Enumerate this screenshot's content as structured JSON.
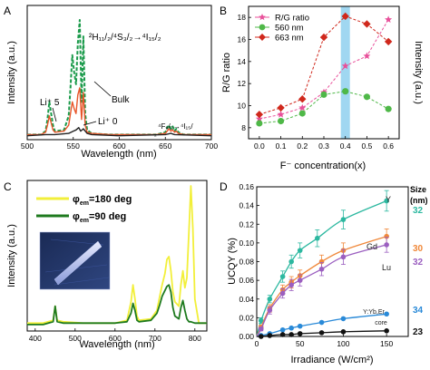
{
  "chart_data": [
    {
      "panel_letter": "A",
      "type": "line",
      "xlabel": "Wavelength (nm)",
      "ylabel": "Intensity (a.u.)",
      "xlim": [
        500,
        700
      ],
      "xticks": [
        500,
        550,
        600,
        650,
        700
      ],
      "transition_green": "²H₁₁/₂/⁴S₃/₂→⁴I₁₅/₂",
      "transition_red": "⁴F₉/₂→⁴I₁₅/",
      "transition_red_suffix": "₂",
      "labels": {
        "bulk": "Bulk",
        "li5": "Li⁺ 5",
        "li0": "Li⁺ 0"
      },
      "series": [
        {
          "name": "Bulk",
          "color": "#1a9a4a",
          "dashed": true,
          "x": [
            500,
            515,
            520,
            522,
            524,
            526,
            528,
            530,
            540,
            545,
            547,
            549,
            551,
            553,
            555,
            557,
            559,
            561,
            563,
            565,
            570,
            590,
            640,
            650,
            652,
            654,
            656,
            658,
            660,
            662,
            664,
            670,
            700
          ],
          "y": [
            0.02,
            0.02,
            0.05,
            0.15,
            0.3,
            0.2,
            0.1,
            0.05,
            0.06,
            0.18,
            0.42,
            0.7,
            0.55,
            0.45,
            0.8,
            1.0,
            0.3,
            0.86,
            0.2,
            0.06,
            0.03,
            0.02,
            0.02,
            0.04,
            0.08,
            0.1,
            0.07,
            0.09,
            0.05,
            0.07,
            0.04,
            0.02,
            0.02
          ]
        },
        {
          "name": "Li⁺ 5",
          "color": "#e8562a",
          "dashed": false,
          "x": [
            500,
            515,
            520,
            522,
            524,
            526,
            528,
            530,
            540,
            545,
            547,
            549,
            551,
            553,
            555,
            557,
            559,
            561,
            563,
            565,
            570,
            590,
            640,
            650,
            652,
            654,
            656,
            658,
            660,
            662,
            664,
            670,
            700
          ],
          "y": [
            0.02,
            0.02,
            0.04,
            0.1,
            0.18,
            0.12,
            0.06,
            0.04,
            0.05,
            0.1,
            0.2,
            0.3,
            0.24,
            0.2,
            0.36,
            0.42,
            0.15,
            0.38,
            0.1,
            0.04,
            0.03,
            0.02,
            0.02,
            0.03,
            0.05,
            0.07,
            0.05,
            0.06,
            0.04,
            0.05,
            0.03,
            0.02,
            0.02
          ]
        },
        {
          "name": "Li⁺ 0",
          "color": "#222222",
          "dashed": false,
          "x": [
            500,
            520,
            530,
            545,
            550,
            553,
            556,
            558,
            561,
            565,
            570,
            600,
            650,
            656,
            660,
            700
          ],
          "y": [
            0.01,
            0.02,
            0.02,
            0.03,
            0.05,
            0.06,
            0.08,
            0.05,
            0.07,
            0.03,
            0.02,
            0.01,
            0.02,
            0.03,
            0.02,
            0.01
          ]
        }
      ]
    },
    {
      "panel_letter": "B",
      "type": "line",
      "xlabel": "F⁻ concentration(x)",
      "ylabel_left": "R/G ratio",
      "ylabel_right": "Intensity (a.u.)",
      "xlim": [
        -0.05,
        0.65
      ],
      "ylim": [
        7,
        19
      ],
      "xticks": [
        "0.0",
        "0.1",
        "0.2",
        "0.3",
        "0.4",
        "0.5",
        "0.6"
      ],
      "yticks": [
        8,
        10,
        12,
        14,
        16,
        18
      ],
      "legend": [
        "R/G ratio",
        "560 nm",
        "663 nm"
      ],
      "highlight_x": 0.4,
      "x": [
        0.0,
        0.1,
        0.2,
        0.3,
        0.4,
        0.5,
        0.6
      ],
      "series": [
        {
          "name": "R/G ratio",
          "color": "#e8509a",
          "marker": "star",
          "values": [
            8.8,
            9.2,
            9.8,
            11.2,
            13.6,
            14.5,
            17.8
          ]
        },
        {
          "name": "560 nm",
          "color": "#4fb848",
          "marker": "circle",
          "values": [
            8.4,
            8.6,
            9.3,
            11.0,
            11.3,
            10.8,
            9.7
          ]
        },
        {
          "name": "663 nm",
          "color": "#d0281c",
          "marker": "diamond",
          "values": [
            9.2,
            9.8,
            10.6,
            16.2,
            18.1,
            17.4,
            15.8
          ]
        }
      ]
    },
    {
      "panel_letter": "C",
      "type": "line",
      "xlabel": "Wavelength (nm)",
      "ylabel": "Intensity (a.u.)",
      "xlim": [
        380,
        830
      ],
      "xticks": [
        400,
        500,
        600,
        700,
        800
      ],
      "series": [
        {
          "name": "φem=180 deg",
          "phi": "φ",
          "sub": "em",
          "rest": "=180 deg",
          "color": "#f2ef3a",
          "x": [
            380,
            420,
            445,
            450,
            455,
            470,
            520,
            600,
            630,
            640,
            645,
            650,
            655,
            660,
            690,
            705,
            712,
            718,
            725,
            730,
            735,
            740,
            745,
            750,
            760,
            765,
            770,
            775,
            780,
            787,
            790,
            795,
            800,
            810,
            830
          ],
          "y": [
            0.03,
            0.03,
            0.05,
            0.15,
            0.05,
            0.04,
            0.03,
            0.03,
            0.05,
            0.18,
            0.3,
            0.2,
            0.08,
            0.05,
            0.06,
            0.12,
            0.22,
            0.3,
            0.38,
            0.48,
            0.5,
            0.4,
            0.25,
            0.18,
            0.15,
            0.3,
            0.4,
            0.28,
            0.35,
            0.8,
            1.0,
            0.7,
            0.2,
            0.03,
            0.03
          ]
        },
        {
          "name": "φem=90 deg",
          "phi": "φ",
          "sub": "em",
          "rest": "=90 deg",
          "color": "#1e7a1e",
          "x": [
            380,
            420,
            445,
            450,
            455,
            470,
            520,
            600,
            630,
            640,
            645,
            650,
            655,
            660,
            690,
            705,
            712,
            718,
            725,
            730,
            735,
            740,
            745,
            750,
            760,
            765,
            770,
            775,
            780,
            785,
            790,
            800,
            830
          ],
          "y": [
            0.02,
            0.02,
            0.04,
            0.15,
            0.04,
            0.03,
            0.03,
            0.03,
            0.04,
            0.1,
            0.17,
            0.12,
            0.05,
            0.04,
            0.05,
            0.1,
            0.16,
            0.22,
            0.26,
            0.29,
            0.3,
            0.25,
            0.14,
            0.08,
            0.06,
            0.14,
            0.19,
            0.12,
            0.06,
            0.04,
            0.04,
            0.03,
            0.03
          ]
        }
      ]
    },
    {
      "panel_letter": "D",
      "type": "scatter",
      "xlabel": "Irradiance (W/cm²)",
      "ylabel": "UCQY (%)",
      "xlim": [
        0,
        175
      ],
      "ylim": [
        0,
        0.16
      ],
      "xticks": [
        0,
        50,
        100,
        150
      ],
      "yticks": [
        "0.00",
        "0.02",
        "0.04",
        "0.06",
        "0.08",
        "0.10",
        "0.12",
        "0.14",
        "0.16"
      ],
      "size_header": [
        "Size",
        "(nm)"
      ],
      "series": [
        {
          "name": "Y",
          "size": "32",
          "color": "#2cb8a0",
          "x": [
            5,
            15,
            30,
            40,
            50,
            70,
            100,
            150
          ],
          "y": [
            0.017,
            0.04,
            0.064,
            0.08,
            0.092,
            0.105,
            0.125,
            0.145
          ],
          "err": [
            0.003,
            0.004,
            0.006,
            0.007,
            0.008,
            0.009,
            0.01,
            0.011
          ]
        },
        {
          "name": "Gd",
          "size": "30",
          "color": "#f0883a",
          "x": [
            5,
            15,
            30,
            40,
            50,
            75,
            100,
            150
          ],
          "y": [
            0.01,
            0.03,
            0.05,
            0.058,
            0.065,
            0.08,
            0.092,
            0.107
          ],
          "err": [
            0.002,
            0.004,
            0.005,
            0.006,
            0.006,
            0.007,
            0.008,
            0.008
          ]
        },
        {
          "name": "Lu",
          "size": "32",
          "color": "#9b5fc0",
          "x": [
            5,
            15,
            30,
            40,
            50,
            75,
            100,
            150
          ],
          "y": [
            0.008,
            0.028,
            0.046,
            0.055,
            0.06,
            0.072,
            0.085,
            0.098
          ],
          "err": [
            0.002,
            0.004,
            0.005,
            0.006,
            0.006,
            0.007,
            0.008,
            0.008
          ]
        },
        {
          "name": "Y:Yb,Er",
          "size": "34",
          "color": "#2a8ad8",
          "x": [
            5,
            15,
            30,
            40,
            50,
            75,
            100,
            150
          ],
          "y": [
            0.001,
            0.003,
            0.007,
            0.009,
            0.011,
            0.015,
            0.019,
            0.024
          ],
          "err": [
            0,
            0,
            0,
            0,
            0,
            0,
            0,
            0
          ]
        },
        {
          "name": "core",
          "size": "23",
          "color": "#111111",
          "x": [
            5,
            15,
            30,
            40,
            50,
            75,
            100,
            150
          ],
          "y": [
            0.0,
            0.001,
            0.002,
            0.002,
            0.003,
            0.004,
            0.005,
            0.006
          ],
          "err": [
            0,
            0,
            0,
            0,
            0,
            0,
            0,
            0
          ]
        }
      ]
    }
  ]
}
